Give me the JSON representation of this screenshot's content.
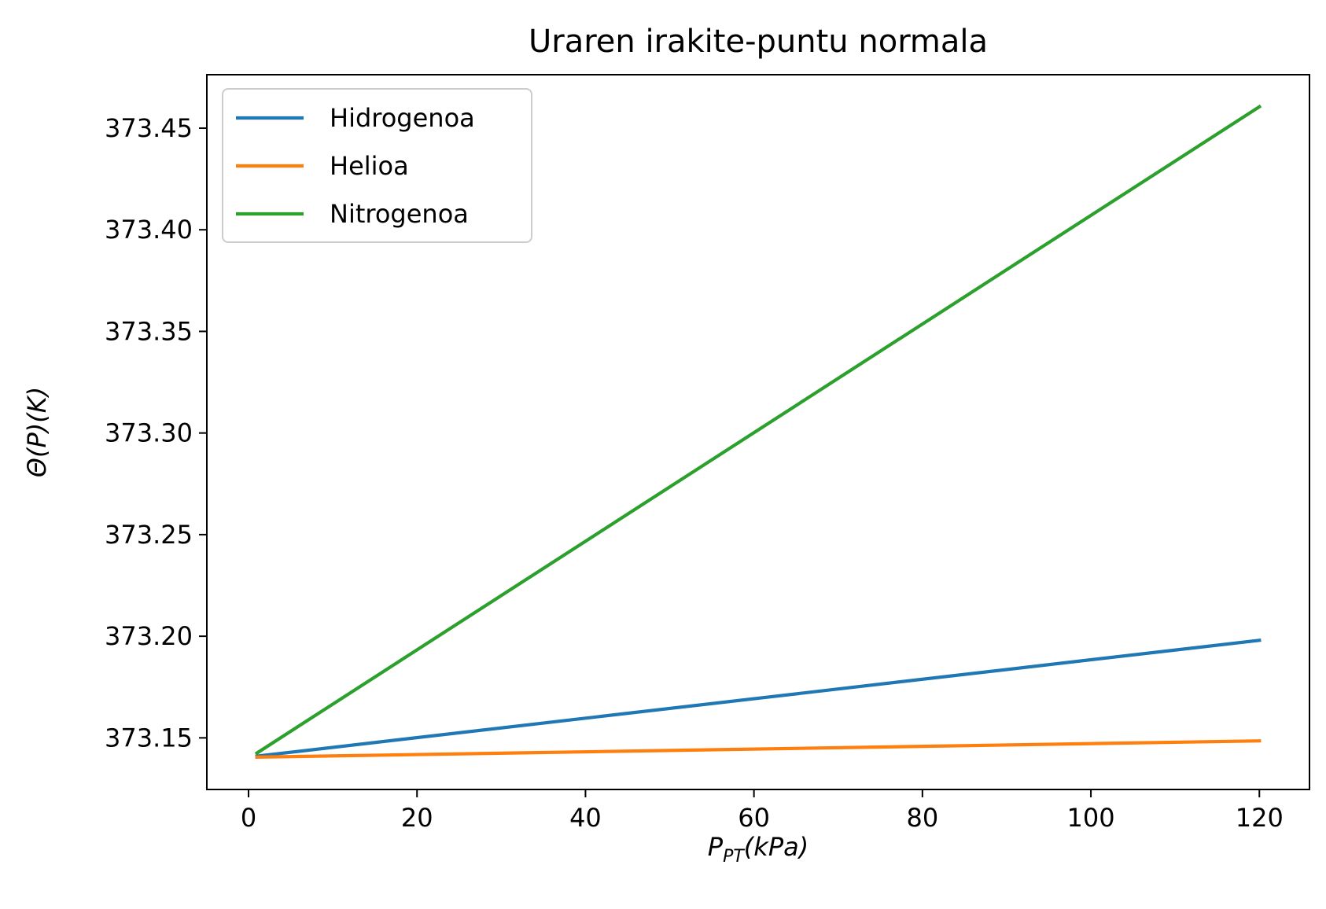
{
  "chart_data": {
    "type": "line",
    "title": "Uraren irakite-puntu normala",
    "xlabel": {
      "main": "P",
      "sub": "PT",
      "rest": "(kPa)"
    },
    "ylabel": "Θ(P)(K)",
    "xlim": [
      -4.95,
      125.95
    ],
    "ylim": [
      373.1246,
      373.4763
    ],
    "x_ticks": [
      0,
      20,
      40,
      60,
      80,
      100,
      120
    ],
    "x_tick_labels": [
      "0",
      "20",
      "40",
      "60",
      "80",
      "100",
      "120"
    ],
    "y_ticks": [
      373.15,
      373.2,
      373.25,
      373.3,
      373.35,
      373.4,
      373.45
    ],
    "y_tick_labels": [
      "373.15",
      "373.20",
      "373.25",
      "373.30",
      "373.35",
      "373.40",
      "373.45"
    ],
    "legend_position": "upper-left",
    "series": [
      {
        "name": "Hidrogenoa",
        "color": "#1f77b4",
        "x": [
          1,
          120
        ],
        "y": [
          373.141,
          373.198
        ]
      },
      {
        "name": "Helioa",
        "color": "#ff7f0e",
        "x": [
          1,
          120
        ],
        "y": [
          373.1405,
          373.1485
        ]
      },
      {
        "name": "Nitrogenoa",
        "color": "#2ca02c",
        "x": [
          1,
          120
        ],
        "y": [
          373.1425,
          373.4605
        ]
      }
    ]
  }
}
